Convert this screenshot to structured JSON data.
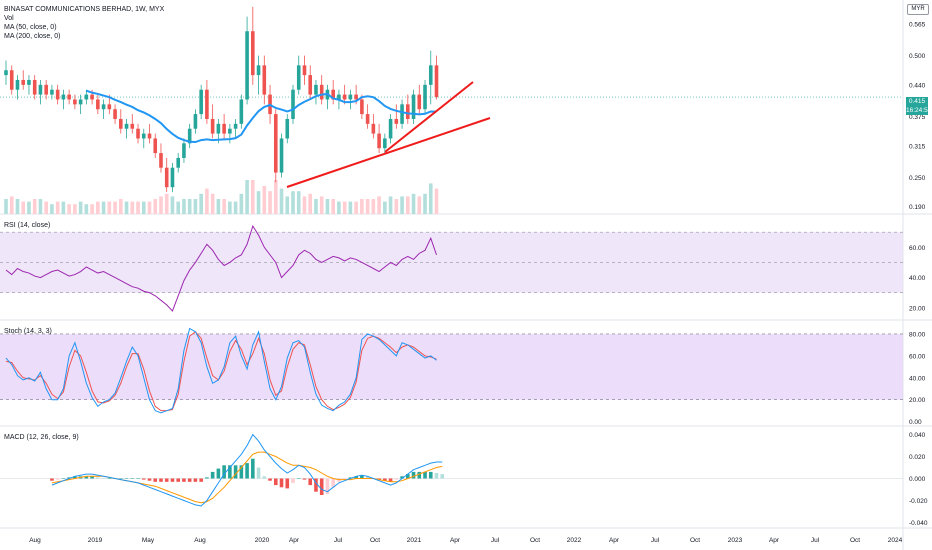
{
  "header": {
    "title": "BINASAT COMMUNICATIONS BERHAD, 1W, MYX",
    "vol_label": "Vol",
    "ma50_label": "MA (50, close, 0)",
    "ma200_label": "MA (200, close, 0)",
    "currency": "MYR"
  },
  "price_tag": {
    "value": "0.415",
    "countdown": "16:24:53"
  },
  "panes": {
    "rsi_label": "RSI (14, close)",
    "stoch_label": "Stoch (14, 3, 3)",
    "macd_label": "MACD (12, 26, close, 9)"
  },
  "colors": {
    "up": "#26a69a",
    "down": "#ef5350",
    "ma": "#2196f3",
    "trendline": "#f01b1b",
    "rsi_line": "#9c27b0",
    "rsi_band": "#e9dcf7",
    "stoch_k": "#2196f3",
    "stoch_d": "#ef5350",
    "stoch_band": "#e6d2f8",
    "macd_line": "#2196f3",
    "signal_line": "#ff9800",
    "hist_pos_strong": "#26a69a",
    "hist_pos_weak": "#b2dfdb",
    "hist_neg_strong": "#ef5350",
    "hist_neg_weak": "#ffcdd2"
  },
  "chart_data": [
    {
      "type": "candlestick",
      "title": "BINASAT COMMUNICATIONS BERHAD, 1W, MYX",
      "x_ticks": [
        "Aug",
        "2019",
        "May",
        "Aug",
        "2020",
        "Apr",
        "Jul",
        "Oct",
        "2021",
        "Apr",
        "Jul",
        "Oct",
        "2022",
        "Apr",
        "Jul",
        "Oct",
        "2023",
        "Apr",
        "Jul",
        "Oct",
        "2024"
      ],
      "y_ticks": [
        "0.565",
        "0.500",
        "0.440",
        "0.375",
        "0.315",
        "0.250",
        "0.190"
      ],
      "ylim": [
        0.175,
        0.61
      ],
      "last_price": 0.415,
      "ohlc_weekly": [
        [
          0.46,
          0.49,
          0.44,
          0.47
        ],
        [
          0.47,
          0.48,
          0.42,
          0.43
        ],
        [
          0.43,
          0.46,
          0.41,
          0.45
        ],
        [
          0.45,
          0.47,
          0.43,
          0.44
        ],
        [
          0.44,
          0.46,
          0.42,
          0.45
        ],
        [
          0.45,
          0.46,
          0.41,
          0.42
        ],
        [
          0.42,
          0.45,
          0.4,
          0.44
        ],
        [
          0.44,
          0.45,
          0.41,
          0.42
        ],
        [
          0.42,
          0.44,
          0.41,
          0.43
        ],
        [
          0.43,
          0.44,
          0.4,
          0.41
        ],
        [
          0.41,
          0.43,
          0.39,
          0.42
        ],
        [
          0.42,
          0.43,
          0.4,
          0.41
        ],
        [
          0.41,
          0.42,
          0.39,
          0.4
        ],
        [
          0.4,
          0.42,
          0.38,
          0.41
        ],
        [
          0.41,
          0.43,
          0.4,
          0.42
        ],
        [
          0.42,
          0.43,
          0.4,
          0.41
        ],
        [
          0.41,
          0.42,
          0.38,
          0.39
        ],
        [
          0.39,
          0.41,
          0.37,
          0.4
        ],
        [
          0.4,
          0.42,
          0.38,
          0.39
        ],
        [
          0.39,
          0.4,
          0.36,
          0.37
        ],
        [
          0.37,
          0.39,
          0.34,
          0.35
        ],
        [
          0.35,
          0.37,
          0.33,
          0.36
        ],
        [
          0.36,
          0.38,
          0.34,
          0.35
        ],
        [
          0.35,
          0.36,
          0.32,
          0.33
        ],
        [
          0.33,
          0.35,
          0.31,
          0.34
        ],
        [
          0.34,
          0.36,
          0.32,
          0.33
        ],
        [
          0.33,
          0.34,
          0.29,
          0.3
        ],
        [
          0.3,
          0.32,
          0.26,
          0.27
        ],
        [
          0.27,
          0.29,
          0.22,
          0.23
        ],
        [
          0.23,
          0.28,
          0.22,
          0.27
        ],
        [
          0.27,
          0.3,
          0.26,
          0.29
        ],
        [
          0.29,
          0.33,
          0.28,
          0.32
        ],
        [
          0.32,
          0.36,
          0.31,
          0.35
        ],
        [
          0.35,
          0.39,
          0.34,
          0.38
        ],
        [
          0.38,
          0.44,
          0.37,
          0.43
        ],
        [
          0.43,
          0.45,
          0.36,
          0.37
        ],
        [
          0.37,
          0.4,
          0.33,
          0.34
        ],
        [
          0.34,
          0.37,
          0.32,
          0.36
        ],
        [
          0.36,
          0.38,
          0.33,
          0.34
        ],
        [
          0.34,
          0.36,
          0.32,
          0.35
        ],
        [
          0.35,
          0.37,
          0.33,
          0.36
        ],
        [
          0.36,
          0.42,
          0.35,
          0.41
        ],
        [
          0.41,
          0.58,
          0.4,
          0.55
        ],
        [
          0.55,
          0.6,
          0.44,
          0.46
        ],
        [
          0.46,
          0.5,
          0.42,
          0.48
        ],
        [
          0.48,
          0.5,
          0.4,
          0.42
        ],
        [
          0.42,
          0.44,
          0.36,
          0.38
        ],
        [
          0.38,
          0.39,
          0.24,
          0.26
        ],
        [
          0.26,
          0.34,
          0.25,
          0.33
        ],
        [
          0.33,
          0.38,
          0.32,
          0.37
        ],
        [
          0.37,
          0.44,
          0.36,
          0.43
        ],
        [
          0.43,
          0.5,
          0.42,
          0.48
        ],
        [
          0.48,
          0.5,
          0.44,
          0.46
        ],
        [
          0.46,
          0.48,
          0.41,
          0.42
        ],
        [
          0.42,
          0.45,
          0.4,
          0.44
        ],
        [
          0.44,
          0.46,
          0.4,
          0.41
        ],
        [
          0.41,
          0.44,
          0.39,
          0.43
        ],
        [
          0.43,
          0.45,
          0.4,
          0.41
        ],
        [
          0.41,
          0.43,
          0.39,
          0.42
        ],
        [
          0.42,
          0.44,
          0.4,
          0.41
        ],
        [
          0.41,
          0.43,
          0.39,
          0.42
        ],
        [
          0.42,
          0.44,
          0.4,
          0.41
        ],
        [
          0.41,
          0.42,
          0.37,
          0.38
        ],
        [
          0.38,
          0.4,
          0.35,
          0.36
        ],
        [
          0.36,
          0.38,
          0.33,
          0.34
        ],
        [
          0.34,
          0.36,
          0.3,
          0.31
        ],
        [
          0.31,
          0.34,
          0.3,
          0.33
        ],
        [
          0.33,
          0.38,
          0.32,
          0.37
        ],
        [
          0.37,
          0.4,
          0.35,
          0.36
        ],
        [
          0.36,
          0.41,
          0.35,
          0.4
        ],
        [
          0.4,
          0.42,
          0.36,
          0.37
        ],
        [
          0.37,
          0.43,
          0.36,
          0.42
        ],
        [
          0.42,
          0.44,
          0.38,
          0.39
        ],
        [
          0.39,
          0.45,
          0.38,
          0.44
        ],
        [
          0.44,
          0.51,
          0.4,
          0.48
        ],
        [
          0.48,
          0.5,
          0.41,
          0.415
        ]
      ],
      "trendlines": [
        {
          "from": [
            "2020-03",
            0.225
          ],
          "to": [
            "2021-03",
            0.385
          ]
        },
        {
          "from": [
            "2020-10",
            0.305
          ],
          "to": [
            "2021-04",
            0.462
          ]
        }
      ]
    },
    {
      "type": "line",
      "title": "RSI (14, close)",
      "y_ticks": [
        "60.00",
        "40.00",
        "20.00"
      ],
      "ylim": [
        12,
        80
      ],
      "band": [
        30,
        70
      ],
      "values": [
        45,
        42,
        46,
        44,
        43,
        41,
        40,
        42,
        44,
        45,
        43,
        41,
        42,
        44,
        47,
        45,
        43,
        44,
        42,
        40,
        38,
        36,
        34,
        33,
        31,
        30,
        28,
        25,
        22,
        18,
        28,
        38,
        45,
        50,
        56,
        62,
        58,
        52,
        48,
        50,
        53,
        55,
        62,
        74,
        68,
        60,
        55,
        50,
        40,
        44,
        48,
        55,
        58,
        56,
        52,
        50,
        52,
        54,
        53,
        51,
        53,
        52,
        50,
        48,
        46,
        44,
        47,
        50,
        48,
        52,
        54,
        52,
        56,
        58,
        66,
        55
      ]
    },
    {
      "type": "line",
      "title": "Stoch (14, 3, 3)",
      "y_ticks": [
        "80.00",
        "60.00",
        "40.00",
        "20.00",
        "0.00"
      ],
      "ylim": [
        -4,
        90
      ],
      "band": [
        20,
        80
      ],
      "k": [
        58,
        52,
        42,
        38,
        40,
        37,
        45,
        30,
        20,
        20,
        30,
        60,
        72,
        55,
        35,
        22,
        14,
        18,
        20,
        26,
        40,
        55,
        68,
        60,
        40,
        20,
        10,
        8,
        10,
        12,
        30,
        65,
        85,
        82,
        72,
        50,
        35,
        38,
        50,
        72,
        78,
        60,
        48,
        70,
        82,
        55,
        30,
        20,
        32,
        58,
        72,
        74,
        68,
        45,
        25,
        15,
        12,
        10,
        15,
        18,
        25,
        40,
        75,
        80,
        78,
        75,
        70,
        65,
        60,
        72,
        70,
        66,
        62,
        58,
        60,
        56
      ],
      "d": [
        55,
        54,
        46,
        40,
        39,
        38,
        42,
        35,
        25,
        21,
        27,
        50,
        65,
        60,
        45,
        28,
        18,
        17,
        19,
        24,
        35,
        50,
        62,
        62,
        48,
        28,
        14,
        10,
        10,
        11,
        25,
        55,
        78,
        82,
        76,
        58,
        42,
        38,
        46,
        64,
        74,
        66,
        52,
        62,
        76,
        62,
        38,
        24,
        28,
        50,
        66,
        72,
        70,
        52,
        32,
        20,
        14,
        11,
        13,
        16,
        22,
        36,
        65,
        76,
        78,
        76,
        72,
        68,
        63,
        68,
        70,
        68,
        64,
        60,
        59,
        57
      ]
    },
    {
      "type": "bar+line",
      "title": "MACD (12, 26, close, 9)",
      "y_ticks": [
        "0.040",
        "0.020",
        "0.000",
        "-0.020",
        "-0.040"
      ],
      "ylim": [
        -0.045,
        0.045
      ],
      "macd": [
        -0.006,
        -0.004,
        -0.002,
        0.0,
        0.002,
        0.003,
        0.004,
        0.004,
        0.003,
        0.002,
        0.001,
        0.0,
        -0.001,
        -0.002,
        -0.003,
        -0.004,
        -0.006,
        -0.008,
        -0.01,
        -0.012,
        -0.014,
        -0.016,
        -0.018,
        -0.02,
        -0.022,
        -0.024,
        -0.025,
        -0.02,
        -0.012,
        -0.004,
        0.004,
        0.01,
        0.016,
        0.022,
        0.03,
        0.04,
        0.034,
        0.026,
        0.02,
        0.014,
        0.009,
        0.005,
        0.008,
        0.012,
        0.01,
        0.004,
        -0.004,
        -0.01,
        -0.012,
        -0.008,
        -0.004,
        -0.002,
        0.0,
        0.002,
        0.003,
        0.002,
        0.0,
        -0.002,
        -0.004,
        -0.006,
        -0.004,
        0.0,
        0.004,
        0.008,
        0.01,
        0.012,
        0.014,
        0.015,
        0.015
      ],
      "signal": [
        -0.004,
        -0.003,
        -0.002,
        -0.001,
        0.0,
        0.001,
        0.002,
        0.002,
        0.002,
        0.002,
        0.001,
        0.0,
        -0.001,
        -0.002,
        -0.003,
        -0.004,
        -0.005,
        -0.006,
        -0.007,
        -0.009,
        -0.011,
        -0.013,
        -0.015,
        -0.017,
        -0.019,
        -0.021,
        -0.022,
        -0.021,
        -0.018,
        -0.013,
        -0.008,
        -0.002,
        0.004,
        0.01,
        0.016,
        0.022,
        0.024,
        0.024,
        0.022,
        0.02,
        0.017,
        0.014,
        0.012,
        0.012,
        0.011,
        0.01,
        0.008,
        0.005,
        0.002,
        0.0,
        -0.001,
        -0.001,
        -0.001,
        0.0,
        0.0,
        0.0,
        0.0,
        -0.001,
        -0.002,
        -0.003,
        -0.003,
        -0.002,
        0.0,
        0.002,
        0.004,
        0.006,
        0.008,
        0.01,
        0.011
      ],
      "hist": [
        -0.002,
        -0.001,
        0.0,
        0.001,
        0.002,
        0.002,
        0.002,
        0.002,
        0.001,
        0.0,
        0.0,
        0.0,
        0.0,
        0.0,
        0.0,
        0.0,
        -0.001,
        -0.002,
        -0.003,
        -0.003,
        -0.003,
        -0.003,
        -0.003,
        -0.003,
        -0.003,
        -0.003,
        -0.003,
        0.001,
        0.006,
        0.009,
        0.012,
        0.012,
        0.012,
        0.012,
        0.014,
        0.018,
        0.01,
        0.002,
        -0.002,
        -0.006,
        -0.008,
        -0.009,
        -0.004,
        0.0,
        -0.001,
        -0.006,
        -0.012,
        -0.015,
        -0.014,
        -0.008,
        -0.003,
        -0.001,
        0.001,
        0.002,
        0.003,
        0.002,
        0.0,
        -0.001,
        -0.002,
        -0.003,
        -0.001,
        0.002,
        0.004,
        0.006,
        0.006,
        0.006,
        0.006,
        0.005,
        0.004
      ]
    }
  ]
}
